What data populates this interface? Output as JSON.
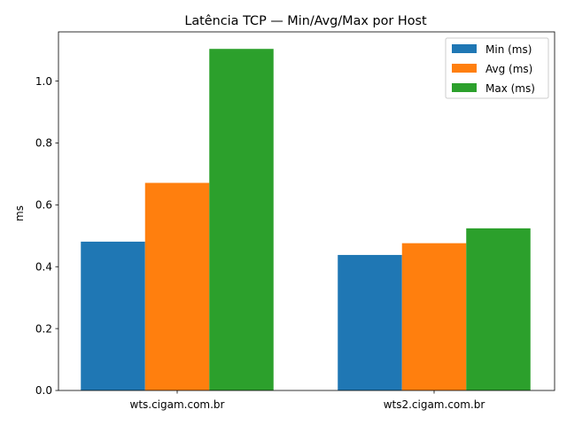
{
  "chart_data": {
    "type": "bar",
    "title": "Latência TCP — Min/Avg/Max por Host",
    "xlabel": "",
    "ylabel": "ms",
    "categories": [
      "wts.cigam.com.br",
      "wts2.cigam.com.br"
    ],
    "series": [
      {
        "name": "Min (ms)",
        "values": [
          0.481,
          0.438
        ],
        "color": "#1f77b4"
      },
      {
        "name": "Avg (ms)",
        "values": [
          0.671,
          0.476
        ],
        "color": "#ff7f0e"
      },
      {
        "name": "Max (ms)",
        "values": [
          1.104,
          0.524
        ],
        "color": "#2ca02c"
      }
    ],
    "ylim": [
      0,
      1.159
    ],
    "yticks": [
      0.0,
      0.2,
      0.4,
      0.6,
      0.8,
      1.0
    ],
    "ytick_labels": [
      "0.0",
      "0.2",
      "0.4",
      "0.6",
      "0.8",
      "1.0"
    ],
    "legend": "top-right",
    "grid": false
  }
}
